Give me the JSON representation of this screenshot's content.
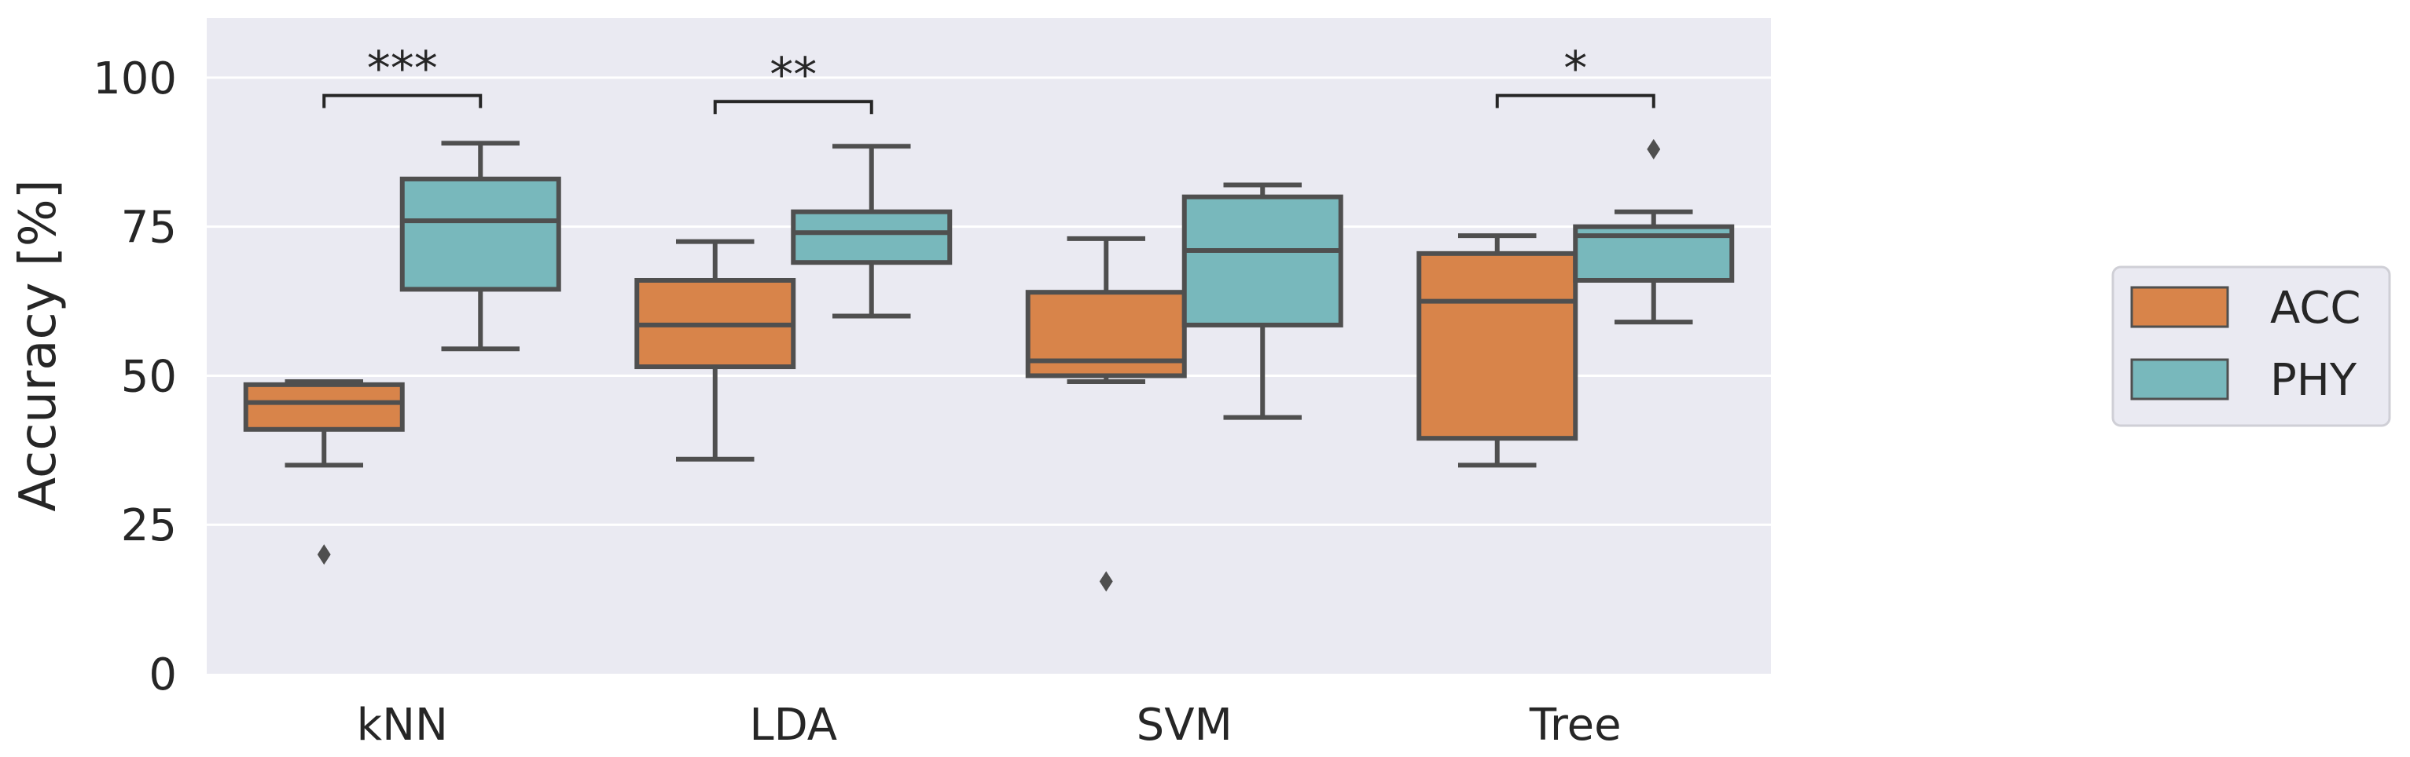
{
  "chart_data": {
    "type": "boxplot",
    "title": "",
    "xlabel": "",
    "ylabel": "Accuracy [%]",
    "ylim": [
      0,
      110
    ],
    "yticks": [
      0,
      25,
      50,
      75,
      100
    ],
    "categories": [
      "kNN",
      "LDA",
      "SVM",
      "Tree"
    ],
    "series": [
      {
        "name": "ACC",
        "color": "#d8844a",
        "boxes": [
          {
            "whisker_low": 35,
            "q1": 41,
            "median": 45.5,
            "q3": 48.5,
            "whisker_high": 49,
            "outliers": [
              20
            ]
          },
          {
            "whisker_low": 36,
            "q1": 51.5,
            "median": 58.5,
            "q3": 66,
            "whisker_high": 72.5,
            "outliers": []
          },
          {
            "whisker_low": 49,
            "q1": 50,
            "median": 52.5,
            "q3": 64,
            "whisker_high": 73,
            "outliers": [
              15.5
            ]
          },
          {
            "whisker_low": 35,
            "q1": 39.5,
            "median": 62.5,
            "q3": 70.5,
            "whisker_high": 73.5,
            "outliers": []
          }
        ]
      },
      {
        "name": "PHY",
        "color": "#78b8bc",
        "boxes": [
          {
            "whisker_low": 54.5,
            "q1": 64.5,
            "median": 76,
            "q3": 83,
            "whisker_high": 89,
            "outliers": []
          },
          {
            "whisker_low": 60,
            "q1": 69,
            "median": 74,
            "q3": 77.5,
            "whisker_high": 88.5,
            "outliers": []
          },
          {
            "whisker_low": 43,
            "q1": 58.5,
            "median": 71,
            "q3": 80,
            "whisker_high": 82,
            "outliers": []
          },
          {
            "whisker_low": 59,
            "q1": 66,
            "median": 73.5,
            "q3": 75,
            "whisker_high": 77.5,
            "outliers": [
              88
            ]
          }
        ]
      }
    ],
    "significance": [
      {
        "category": "kNN",
        "label": "***",
        "level": 97
      },
      {
        "category": "LDA",
        "label": "**",
        "level": 96
      },
      {
        "category": "Tree",
        "label": "*",
        "level": 97
      }
    ],
    "legend": {
      "position": "right",
      "entries": [
        "ACC",
        "PHY"
      ]
    },
    "grid": true,
    "background": "#eaeaf2",
    "line_color": "#4f4f4f"
  }
}
